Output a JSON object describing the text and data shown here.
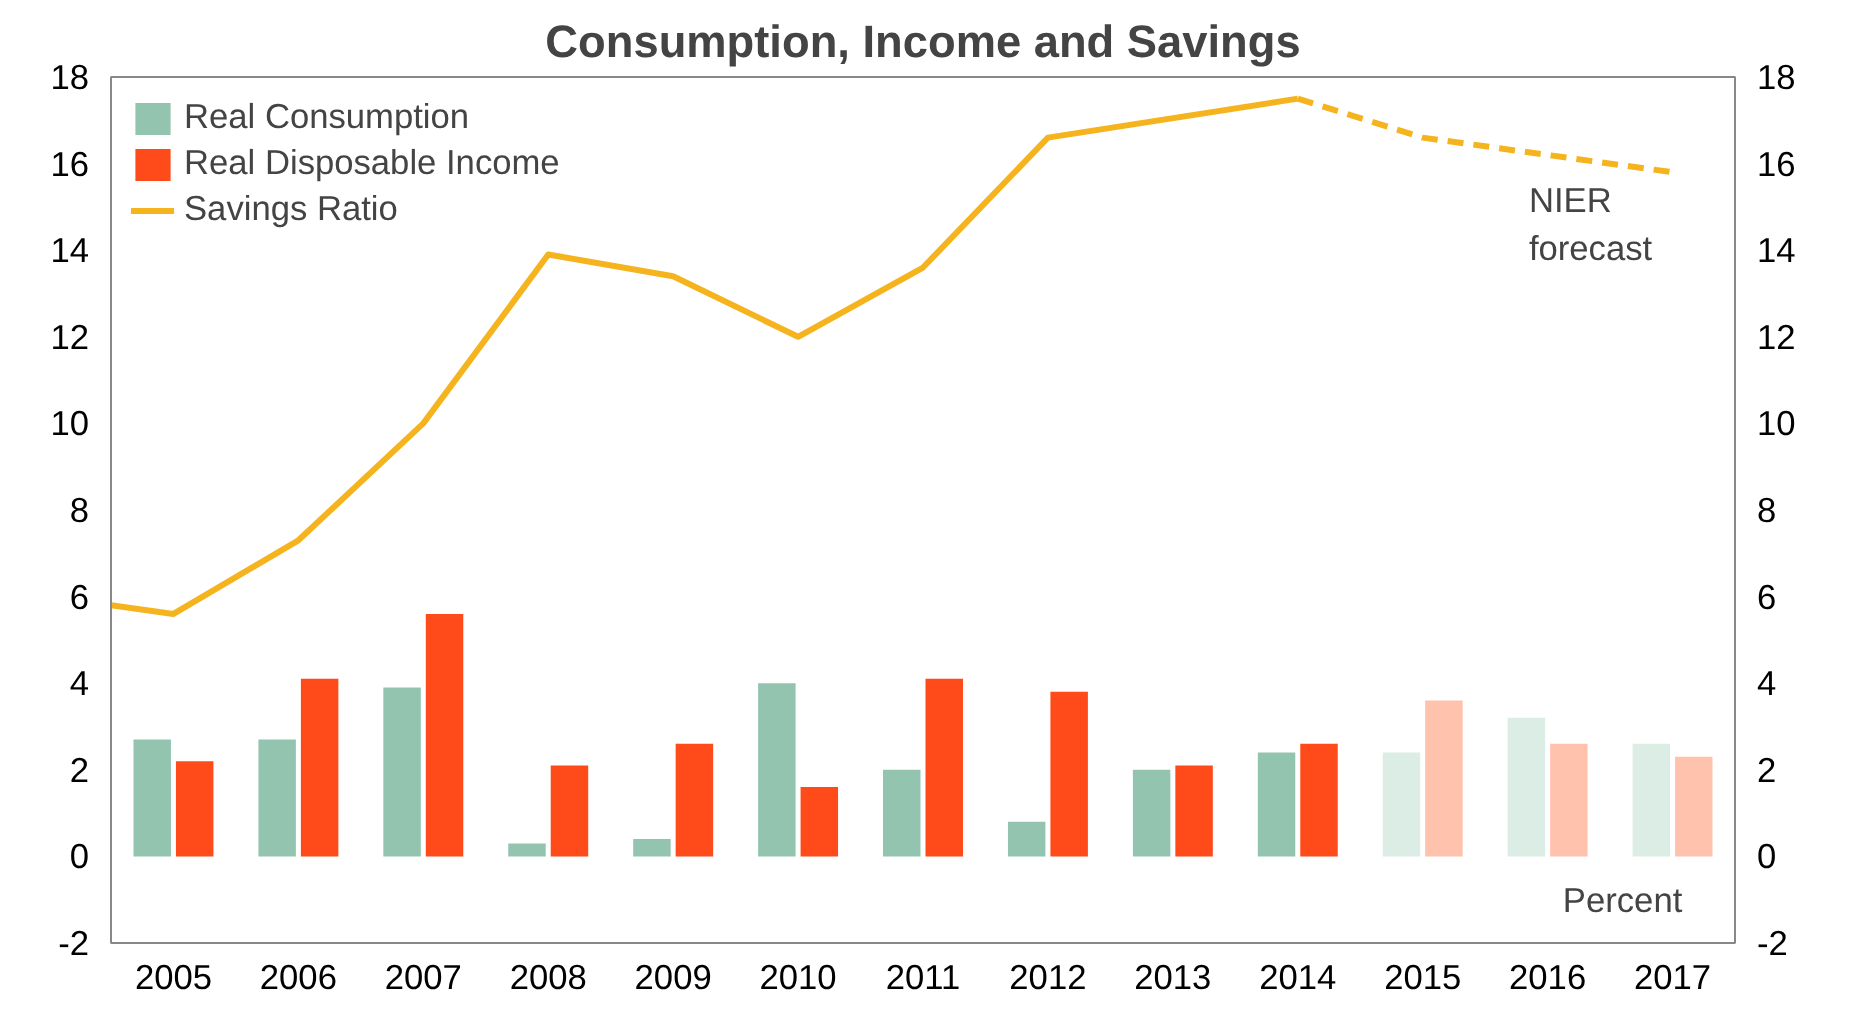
{
  "chart_data": {
    "type": "bar",
    "title": "Consumption, Income and Savings",
    "x": [
      2005,
      2006,
      2007,
      2008,
      2009,
      2010,
      2011,
      2012,
      2013,
      2014,
      2015,
      2016,
      2017
    ],
    "xlim": [
      2004.5,
      2017.5
    ],
    "xticks": [
      2005,
      2006,
      2007,
      2008,
      2009,
      2010,
      2011,
      2012,
      2013,
      2014,
      2015,
      2016,
      2017
    ],
    "ylim": [
      -2,
      18
    ],
    "yticks": [
      -2,
      0,
      2,
      4,
      6,
      8,
      10,
      12,
      14,
      16,
      18
    ],
    "y2lim": [
      -2,
      18
    ],
    "y2ticks": [
      -2,
      0,
      2,
      4,
      6,
      8,
      10,
      12,
      14,
      16,
      18
    ],
    "series": [
      {
        "name": "Real Consumption",
        "color": "#93c4b0",
        "colors": [
          "#93c4b0",
          "#93c4b0",
          "#93c4b0",
          "#93c4b0",
          "#93c4b0",
          "#93c4b0",
          "#93c4b0",
          "#93c4b0",
          "#93c4b0",
          "#93c4b0",
          "#dcede6",
          "#dcede6",
          "#dcede6"
        ],
        "values": [
          2.7,
          2.7,
          3.9,
          0.3,
          0.4,
          4.0,
          2.0,
          0.8,
          2.0,
          2.4,
          2.4,
          3.2,
          2.6
        ]
      },
      {
        "name": "Real Disposable Income",
        "color": "#ff4a1a",
        "colors": [
          "#ff4a1a",
          "#ff4a1a",
          "#ff4a1a",
          "#ff4a1a",
          "#ff4a1a",
          "#ff4a1a",
          "#ff4a1a",
          "#ff4a1a",
          "#ff4a1a",
          "#ff4a1a",
          "#ffc2ad",
          "#ffc2ad",
          "#ffc2ad"
        ],
        "values": [
          2.2,
          4.1,
          5.6,
          2.1,
          2.6,
          1.6,
          4.1,
          3.8,
          2.1,
          2.6,
          3.6,
          2.6,
          2.3
        ]
      },
      {
        "name": "Savings Ratio",
        "type": "line",
        "color": "#f5b41e",
        "line_style": "solid",
        "x": [
          2004.5,
          2005,
          2006,
          2007,
          2008,
          2009,
          2010,
          2011,
          2012,
          2014
        ],
        "values": [
          5.8,
          5.6,
          7.3,
          10.0,
          13.9,
          13.4,
          12.0,
          13.6,
          16.6,
          17.5
        ]
      },
      {
        "type": "line",
        "color": "#f5b41e",
        "line_style": "dashed",
        "x": [
          2014,
          2015,
          2016,
          2017
        ],
        "values": [
          17.5,
          16.6,
          16.2,
          15.8
        ]
      }
    ],
    "annotations": [
      "NIER forecast",
      "Percent"
    ],
    "legend": "top left",
    "grid": false
  }
}
